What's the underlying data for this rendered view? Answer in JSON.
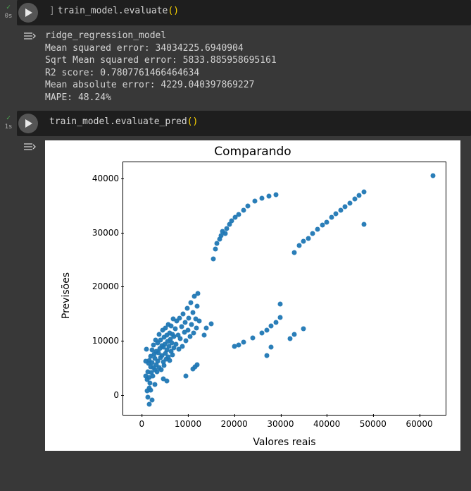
{
  "cells": [
    {
      "exec_check": "✓",
      "exec_time": "0s",
      "code": {
        "object": "train_model",
        "method": "evaluate",
        "parens": "()"
      },
      "output_lines": [
        "ridge_regression_model",
        "Mean squared error: 34034225.6940904",
        "Sqrt Mean squared error: 5833.885958695161",
        "R2 score: 0.7807761466464634",
        "Mean absolute error: 4229.040397869227",
        "MAPE: 48.24%"
      ]
    },
    {
      "exec_check": "✓",
      "exec_time": "1s",
      "code": {
        "object": "train_model",
        "method": "evaluate_pred",
        "parens": "()"
      }
    }
  ],
  "chart": {
    "type": "scatter",
    "title": "Comparando",
    "xlabel": "Valores reais",
    "ylabel": "Previsões",
    "xlim": [
      -4000,
      66000
    ],
    "ylim": [
      -4000,
      43000
    ],
    "xticks": [
      0,
      10000,
      20000,
      30000,
      40000,
      50000,
      60000
    ],
    "yticks": [
      0,
      10000,
      20000,
      30000,
      40000
    ],
    "marker_color": "#1f77b4",
    "marker_size": 7,
    "marker_alpha": 0.95,
    "background_color": "#ffffff",
    "border_color": "#000000",
    "tick_fontsize": 12,
    "label_fontsize": 14,
    "title_fontsize": 17,
    "points": [
      [
        900,
        3500
      ],
      [
        1200,
        2800
      ],
      [
        1400,
        4200
      ],
      [
        1500,
        5800
      ],
      [
        1600,
        3200
      ],
      [
        1700,
        6400
      ],
      [
        1800,
        2200
      ],
      [
        1900,
        7100
      ],
      [
        2000,
        5200
      ],
      [
        2100,
        4100
      ],
      [
        2200,
        8300
      ],
      [
        2300,
        6000
      ],
      [
        2400,
        3500
      ],
      [
        2500,
        9200
      ],
      [
        2600,
        5000
      ],
      [
        2700,
        7500
      ],
      [
        2800,
        4600
      ],
      [
        2900,
        6800
      ],
      [
        3000,
        10200
      ],
      [
        3100,
        5600
      ],
      [
        3200,
        8100
      ],
      [
        3300,
        4200
      ],
      [
        3400,
        9600
      ],
      [
        3500,
        6200
      ],
      [
        3600,
        7800
      ],
      [
        3700,
        11200
      ],
      [
        3800,
        5100
      ],
      [
        3900,
        8600
      ],
      [
        4000,
        6900
      ],
      [
        4100,
        10100
      ],
      [
        4200,
        4700
      ],
      [
        4300,
        9100
      ],
      [
        4400,
        7300
      ],
      [
        4500,
        11900
      ],
      [
        4600,
        6100
      ],
      [
        4700,
        8800
      ],
      [
        4800,
        10600
      ],
      [
        4900,
        5400
      ],
      [
        5000,
        9400
      ],
      [
        5100,
        7700
      ],
      [
        5200,
        12400
      ],
      [
        5300,
        6600
      ],
      [
        5400,
        11000
      ],
      [
        5500,
        8300
      ],
      [
        5600,
        9900
      ],
      [
        5700,
        7000
      ],
      [
        5800,
        13000
      ],
      [
        5900,
        8900
      ],
      [
        6000,
        11500
      ],
      [
        6100,
        6400
      ],
      [
        6200,
        10300
      ],
      [
        6300,
        8000
      ],
      [
        6400,
        12800
      ],
      [
        6500,
        9600
      ],
      [
        6600,
        7400
      ],
      [
        6700,
        11200
      ],
      [
        6800,
        14000
      ],
      [
        6900,
        8700
      ],
      [
        7000,
        10800
      ],
      [
        7200,
        12200
      ],
      [
        7400,
        9300
      ],
      [
        7600,
        13600
      ],
      [
        7800,
        11000
      ],
      [
        8000,
        8400
      ],
      [
        8200,
        14200
      ],
      [
        8400,
        10400
      ],
      [
        8600,
        12600
      ],
      [
        8800,
        9000
      ],
      [
        9000,
        15000
      ],
      [
        9200,
        11600
      ],
      [
        9400,
        13400
      ],
      [
        9600,
        10000
      ],
      [
        9800,
        16000
      ],
      [
        10000,
        12000
      ],
      [
        10200,
        14200
      ],
      [
        10400,
        10800
      ],
      [
        10600,
        17000
      ],
      [
        10800,
        13000
      ],
      [
        11000,
        15200
      ],
      [
        11200,
        11400
      ],
      [
        11400,
        18200
      ],
      [
        11600,
        14000
      ],
      [
        11800,
        12400
      ],
      [
        12000,
        16400
      ],
      [
        12200,
        18800
      ],
      [
        12400,
        13600
      ],
      [
        1100,
        700
      ],
      [
        1300,
        -500
      ],
      [
        1600,
        1200
      ],
      [
        2000,
        900
      ],
      [
        2800,
        1900
      ],
      [
        900,
        6200
      ],
      [
        1000,
        8500
      ],
      [
        4700,
        3000
      ],
      [
        5400,
        2500
      ],
      [
        11000,
        4800
      ],
      [
        11500,
        5200
      ],
      [
        12000,
        5600
      ],
      [
        9500,
        3500
      ],
      [
        15500,
        25200
      ],
      [
        16000,
        27000
      ],
      [
        16300,
        28000
      ],
      [
        16800,
        28800
      ],
      [
        17200,
        29400
      ],
      [
        17500,
        30200
      ],
      [
        18000,
        29900
      ],
      [
        18400,
        30800
      ],
      [
        19000,
        31500
      ],
      [
        19500,
        32200
      ],
      [
        20200,
        32800
      ],
      [
        21000,
        33400
      ],
      [
        22000,
        34200
      ],
      [
        23000,
        35000
      ],
      [
        24500,
        35800
      ],
      [
        26000,
        36400
      ],
      [
        27500,
        36800
      ],
      [
        29000,
        37000
      ],
      [
        33000,
        26300
      ],
      [
        34000,
        27600
      ],
      [
        35000,
        28400
      ],
      [
        36000,
        29000
      ],
      [
        37000,
        29800
      ],
      [
        38000,
        30600
      ],
      [
        39000,
        31400
      ],
      [
        40000,
        32000
      ],
      [
        41000,
        32800
      ],
      [
        42000,
        33500
      ],
      [
        43000,
        34200
      ],
      [
        44000,
        34800
      ],
      [
        45000,
        35500
      ],
      [
        46000,
        36200
      ],
      [
        47000,
        36900
      ],
      [
        48000,
        37500
      ],
      [
        48000,
        31600
      ],
      [
        63000,
        40600
      ],
      [
        20000,
        9000
      ],
      [
        21000,
        9200
      ],
      [
        22000,
        9800
      ],
      [
        24000,
        10500
      ],
      [
        26000,
        11400
      ],
      [
        27000,
        12000
      ],
      [
        28000,
        12800
      ],
      [
        29000,
        13400
      ],
      [
        30000,
        14300
      ],
      [
        32000,
        10400
      ],
      [
        33000,
        11200
      ],
      [
        35000,
        12200
      ],
      [
        28000,
        8800
      ],
      [
        30000,
        16800
      ],
      [
        27000,
        7200
      ],
      [
        15000,
        13200
      ],
      [
        14000,
        12400
      ],
      [
        13500,
        11000
      ],
      [
        1700,
        -1800
      ],
      [
        2200,
        -1000
      ]
    ]
  },
  "colors": {
    "page_bg": "#383838",
    "code_bg": "#1e1e1e",
    "text": "#d4d4d4",
    "paren": "#ffd700",
    "check": "#4caf50",
    "runbtn_bg": "#555555",
    "runbtn_fg": "#e8e8e8"
  }
}
